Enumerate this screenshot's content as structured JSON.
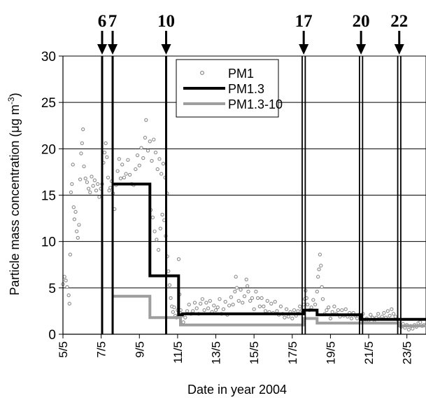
{
  "chart_data": {
    "type": "line",
    "title": "",
    "xlabel": "Date in year 2004",
    "ylabel": "Particle mass concentration (μg m⁻³)",
    "ylabel_parts": {
      "main": "Particle mass concentration (μg  m",
      "sup": "-3",
      "end": ")"
    },
    "xlim": [
      5,
      24
    ],
    "ylim": [
      0,
      30
    ],
    "x_ticks": [
      5,
      7,
      9,
      11,
      13,
      15,
      17,
      19,
      21,
      23
    ],
    "x_tick_labels": [
      "5/5",
      "7/5",
      "9/5",
      "11/5",
      "13/5",
      "15/5",
      "17/5",
      "19/5",
      "21/5",
      "23/5"
    ],
    "y_ticks": [
      0,
      5,
      10,
      15,
      20,
      25,
      30
    ],
    "y_tick_labels": [
      "0",
      "5",
      "10",
      "15",
      "20",
      "25",
      "30"
    ],
    "grid": "horizontal",
    "legend_position": "top-center",
    "events": [
      {
        "label": "6",
        "x": 7.05,
        "double": false
      },
      {
        "label": "7",
        "x": 7.6,
        "double": false
      },
      {
        "label": "10",
        "x": 10.4,
        "double": false
      },
      {
        "label": "17",
        "x": 17.6,
        "double": true
      },
      {
        "label": "20",
        "x": 20.6,
        "double": true
      },
      {
        "label": "22",
        "x": 22.6,
        "double": true
      }
    ],
    "series": [
      {
        "name": "PM1",
        "kind": "scatter",
        "color": "#8c8c8c",
        "points": [
          [
            5.0,
            5.4
          ],
          [
            5.08,
            6.2
          ],
          [
            5.15,
            5.8
          ],
          [
            5.22,
            5.1
          ],
          [
            5.3,
            4.2
          ],
          [
            5.34,
            3.3
          ],
          [
            5.38,
            8.6
          ],
          [
            5.42,
            15.3
          ],
          [
            5.47,
            16.2
          ],
          [
            5.52,
            18.3
          ],
          [
            5.56,
            13.7
          ],
          [
            5.6,
            12.4
          ],
          [
            5.66,
            13.2
          ],
          [
            5.72,
            11.1
          ],
          [
            5.78,
            10.4
          ],
          [
            5.84,
            11.8
          ],
          [
            5.9,
            16.7
          ],
          [
            5.95,
            19.5
          ],
          [
            6.0,
            20.6
          ],
          [
            6.05,
            22.1
          ],
          [
            6.1,
            18.1
          ],
          [
            6.18,
            16.8
          ],
          [
            6.26,
            16.4
          ],
          [
            6.34,
            15.7
          ],
          [
            6.42,
            15.3
          ],
          [
            6.5,
            17.0
          ],
          [
            6.58,
            16.0
          ],
          [
            6.66,
            16.6
          ],
          [
            6.74,
            15.5
          ],
          [
            6.82,
            16.2
          ],
          [
            6.9,
            14.8
          ],
          [
            6.98,
            15.7
          ],
          [
            7.05,
            16.2
          ],
          [
            7.12,
            18.5
          ],
          [
            7.18,
            19.6
          ],
          [
            7.24,
            20.6
          ],
          [
            7.3,
            19.1
          ],
          [
            7.36,
            16.9
          ],
          [
            7.42,
            15.5
          ],
          [
            7.48,
            15.8
          ],
          [
            7.55,
            16.5
          ],
          [
            7.62,
            15.2
          ],
          [
            7.7,
            13.5
          ],
          [
            7.78,
            16.1
          ],
          [
            7.86,
            17.6
          ],
          [
            7.94,
            18.9
          ],
          [
            8.02,
            16.8
          ],
          [
            8.1,
            18.3
          ],
          [
            8.2,
            16.9
          ],
          [
            8.3,
            17.3
          ],
          [
            8.4,
            18.8
          ],
          [
            8.5,
            17.2
          ],
          [
            8.6,
            16.2
          ],
          [
            8.7,
            16.1
          ],
          [
            8.8,
            17.8
          ],
          [
            8.9,
            19.3
          ],
          [
            9.0,
            18.2
          ],
          [
            9.1,
            20.1
          ],
          [
            9.2,
            19.0
          ],
          [
            9.3,
            21.2
          ],
          [
            9.35,
            23.1
          ],
          [
            9.45,
            19.8
          ],
          [
            9.55,
            20.8
          ],
          [
            9.65,
            18.7
          ],
          [
            9.75,
            21.0
          ],
          [
            9.85,
            19.6
          ],
          [
            9.95,
            17.8
          ],
          [
            10.05,
            18.9
          ],
          [
            10.15,
            17.3
          ],
          [
            10.25,
            18.4
          ],
          [
            10.35,
            16.9
          ],
          [
            10.45,
            15.2
          ],
          [
            9.6,
            13.4
          ],
          [
            9.7,
            12.6
          ],
          [
            9.8,
            11.1
          ],
          [
            9.9,
            10.2
          ],
          [
            10.0,
            9.1
          ],
          [
            10.1,
            11.4
          ],
          [
            10.2,
            12.9
          ],
          [
            10.3,
            12.3
          ],
          [
            10.38,
            10.6
          ],
          [
            10.46,
            8.4
          ],
          [
            10.52,
            6.8
          ],
          [
            10.58,
            5.3
          ],
          [
            10.64,
            3.9
          ],
          [
            10.7,
            3.0
          ],
          [
            10.76,
            2.4
          ],
          [
            10.82,
            2.9
          ],
          [
            10.88,
            2.0
          ],
          [
            10.94,
            1.8
          ],
          [
            11.0,
            2.6
          ],
          [
            11.06,
            8.1
          ],
          [
            11.1,
            4.3
          ],
          [
            11.16,
            2.6
          ],
          [
            11.22,
            2.0
          ],
          [
            11.3,
            1.3
          ],
          [
            11.4,
            1.8
          ],
          [
            11.5,
            2.5
          ],
          [
            11.6,
            3.2
          ],
          [
            11.7,
            2.2
          ],
          [
            11.8,
            2.5
          ],
          [
            11.9,
            3.4
          ],
          [
            12.0,
            2.8
          ],
          [
            12.1,
            2.2
          ],
          [
            12.2,
            3.3
          ],
          [
            12.3,
            3.8
          ],
          [
            12.4,
            2.6
          ],
          [
            12.5,
            3.4
          ],
          [
            12.6,
            2.8
          ],
          [
            12.7,
            3.6
          ],
          [
            12.8,
            2.4
          ],
          [
            12.9,
            3.1
          ],
          [
            13.0,
            2.6
          ],
          [
            13.1,
            2.9
          ],
          [
            13.2,
            3.8
          ],
          [
            13.3,
            2.2
          ],
          [
            13.4,
            2.7
          ],
          [
            13.5,
            3.5
          ],
          [
            13.6,
            2.1
          ],
          [
            13.7,
            3.1
          ],
          [
            13.8,
            4.0
          ],
          [
            13.9,
            3.2
          ],
          [
            14.0,
            4.6
          ],
          [
            14.05,
            6.2
          ],
          [
            14.1,
            5.0
          ],
          [
            14.2,
            3.6
          ],
          [
            14.3,
            4.8
          ],
          [
            14.4,
            3.4
          ],
          [
            14.5,
            4.1
          ],
          [
            14.6,
            5.9
          ],
          [
            14.65,
            5.2
          ],
          [
            14.7,
            4.6
          ],
          [
            14.8,
            3.6
          ],
          [
            14.9,
            3.9
          ],
          [
            15.0,
            2.7
          ],
          [
            15.1,
            4.6
          ],
          [
            15.2,
            3.9
          ],
          [
            15.3,
            3.0
          ],
          [
            15.4,
            3.9
          ],
          [
            15.5,
            3.0
          ],
          [
            15.6,
            2.5
          ],
          [
            15.7,
            3.6
          ],
          [
            15.8,
            2.4
          ],
          [
            15.9,
            3.3
          ],
          [
            16.0,
            2.3
          ],
          [
            16.1,
            3.5
          ],
          [
            16.2,
            2.5
          ],
          [
            16.3,
            2.1
          ],
          [
            16.4,
            3.0
          ],
          [
            16.5,
            2.2
          ],
          [
            16.6,
            1.8
          ],
          [
            16.7,
            2.7
          ],
          [
            16.8,
            1.9
          ],
          [
            16.9,
            2.4
          ],
          [
            17.0,
            1.7
          ],
          [
            17.1,
            2.6
          ],
          [
            17.2,
            2.0
          ],
          [
            17.3,
            2.5
          ],
          [
            17.4,
            3.0
          ],
          [
            17.5,
            2.6
          ],
          [
            17.6,
            3.2
          ],
          [
            17.65,
            3.8
          ],
          [
            17.7,
            4.7
          ],
          [
            17.75,
            3.9
          ],
          [
            17.8,
            3.2
          ],
          [
            17.9,
            2.6
          ],
          [
            18.0,
            2.9
          ],
          [
            18.1,
            3.7
          ],
          [
            18.2,
            3.2
          ],
          [
            18.3,
            4.6
          ],
          [
            18.35,
            6.2
          ],
          [
            18.4,
            7.0
          ],
          [
            18.45,
            8.6
          ],
          [
            18.5,
            7.4
          ],
          [
            18.55,
            5.1
          ],
          [
            18.6,
            3.8
          ],
          [
            18.7,
            2.2
          ],
          [
            18.8,
            2.6
          ],
          [
            18.9,
            2.9
          ],
          [
            19.0,
            1.7
          ],
          [
            19.1,
            2.4
          ],
          [
            19.2,
            3.0
          ],
          [
            19.3,
            2.2
          ],
          [
            19.4,
            2.6
          ],
          [
            19.5,
            1.9
          ],
          [
            19.6,
            2.6
          ],
          [
            19.7,
            2.0
          ],
          [
            19.8,
            2.7
          ],
          [
            19.9,
            1.9
          ],
          [
            20.0,
            2.3
          ],
          [
            20.1,
            1.7
          ],
          [
            20.2,
            2.3
          ],
          [
            20.3,
            2.0
          ],
          [
            20.4,
            1.7
          ],
          [
            20.5,
            2.1
          ],
          [
            20.6,
            1.6
          ],
          [
            20.7,
            2.2
          ],
          [
            20.8,
            1.3
          ],
          [
            20.9,
            1.7
          ],
          [
            21.0,
            1.5
          ],
          [
            21.1,
            2.1
          ],
          [
            21.2,
            1.8
          ],
          [
            21.3,
            1.3
          ],
          [
            21.4,
            1.8
          ],
          [
            21.5,
            2.2
          ],
          [
            21.6,
            1.7
          ],
          [
            21.7,
            1.9
          ],
          [
            21.8,
            2.3
          ],
          [
            21.9,
            1.8
          ],
          [
            22.0,
            2.5
          ],
          [
            22.1,
            2.0
          ],
          [
            22.2,
            2.7
          ],
          [
            22.3,
            2.2
          ],
          [
            22.4,
            1.9
          ],
          [
            22.5,
            1.6
          ],
          [
            22.6,
            1.2
          ],
          [
            22.7,
            0.8
          ],
          [
            22.8,
            1.1
          ],
          [
            22.9,
            0.7
          ],
          [
            23.0,
            1.0
          ],
          [
            23.1,
            0.5
          ],
          [
            23.2,
            0.9
          ],
          [
            23.3,
            0.6
          ],
          [
            23.4,
            1.0
          ],
          [
            23.5,
            0.8
          ],
          [
            23.6,
            1.2
          ],
          [
            23.7,
            1.3
          ],
          [
            23.8,
            0.9
          ],
          [
            23.9,
            1.0
          ]
        ]
      },
      {
        "name": "PM1.3",
        "kind": "step",
        "color": "#000000",
        "points": [
          [
            7.6,
            16.2
          ],
          [
            9.55,
            16.2
          ],
          [
            9.55,
            6.3
          ],
          [
            11.05,
            6.3
          ],
          [
            11.05,
            2.1
          ],
          [
            11.25,
            2.1
          ],
          [
            11.25,
            2.2
          ],
          [
            17.6,
            2.2
          ],
          [
            17.6,
            2.6
          ],
          [
            18.3,
            2.6
          ],
          [
            18.3,
            2.1
          ],
          [
            20.6,
            2.1
          ],
          [
            20.6,
            1.6
          ],
          [
            22.6,
            1.6
          ],
          [
            22.6,
            1.6
          ],
          [
            24.0,
            1.6
          ]
        ]
      },
      {
        "name": "PM1.3-10",
        "kind": "step",
        "color": "#9e9e9e",
        "points": [
          [
            7.6,
            4.1
          ],
          [
            9.55,
            4.1
          ],
          [
            9.55,
            1.8
          ],
          [
            10.4,
            1.8
          ],
          [
            10.4,
            1.8
          ],
          [
            11.15,
            1.8
          ],
          [
            11.15,
            1.0
          ],
          [
            17.6,
            1.0
          ],
          [
            17.6,
            1.7
          ],
          [
            18.3,
            1.7
          ],
          [
            18.3,
            1.2
          ],
          [
            20.6,
            1.2
          ],
          [
            20.6,
            1.2
          ],
          [
            22.6,
            1.2
          ],
          [
            22.6,
            0.9
          ],
          [
            24.0,
            0.9
          ]
        ]
      }
    ]
  }
}
